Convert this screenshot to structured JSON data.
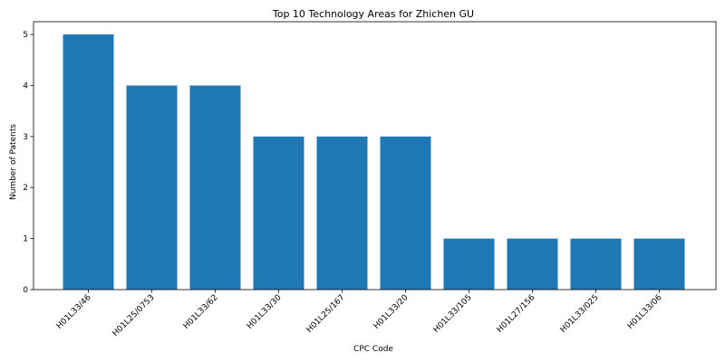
{
  "chart_data": {
    "type": "bar",
    "title": "Top 10 Technology Areas for Zhichen GU",
    "xlabel": "CPC Code",
    "ylabel": "Number of Patents",
    "categories": [
      "H01L33/46",
      "H01L25/0753",
      "H01L33/62",
      "H01L33/30",
      "H01L25/167",
      "H01L33/20",
      "H01L33/105",
      "H01L27/156",
      "H01L33/025",
      "H01L33/06"
    ],
    "values": [
      5,
      4,
      4,
      3,
      3,
      3,
      1,
      1,
      1,
      1
    ],
    "ylim": [
      0,
      5.25
    ],
    "yticks": [
      0,
      1,
      2,
      3,
      4,
      5
    ],
    "bar_color": "#1f77b4",
    "grid": false,
    "legend": "none"
  }
}
